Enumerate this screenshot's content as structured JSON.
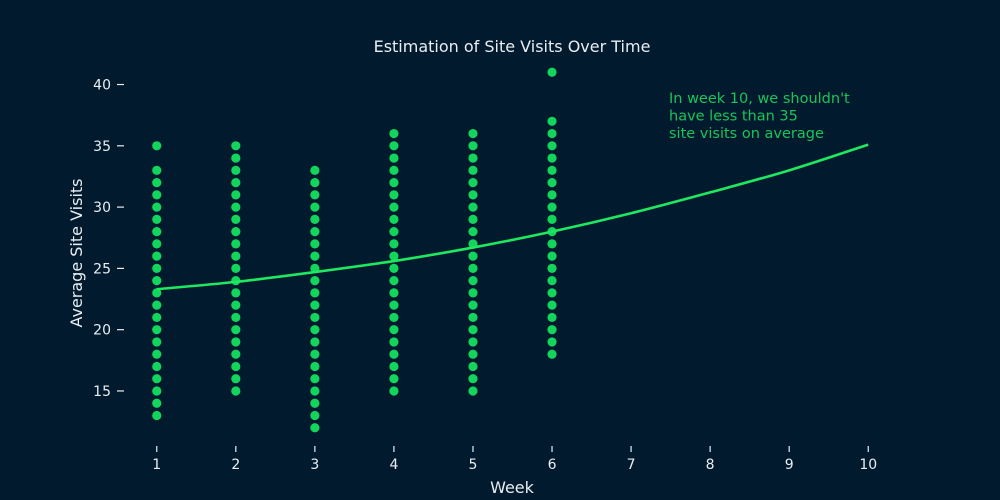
{
  "chart_data": {
    "type": "scatter",
    "title": "Estimation of Site Visits Over Time",
    "xlabel": "Week",
    "ylabel": "Average Site Visits",
    "xlim": [
      0.75,
      10.25
    ],
    "ylim": [
      11,
      42
    ],
    "x_ticks": [
      1,
      2,
      3,
      4,
      5,
      6,
      7,
      8,
      9,
      10
    ],
    "y_ticks": [
      15,
      20,
      25,
      30,
      35,
      40
    ],
    "grid": false,
    "colors": {
      "background": "#021a2e",
      "points": "#12d65c",
      "trend": "#1ee860",
      "annotation": "#19c45a",
      "text": "#e8eef3"
    },
    "series": [
      {
        "type": "scatter",
        "points": [
          [
            1,
            13
          ],
          [
            1,
            14
          ],
          [
            1,
            15
          ],
          [
            1,
            16
          ],
          [
            1,
            17
          ],
          [
            1,
            18
          ],
          [
            1,
            19
          ],
          [
            1,
            20
          ],
          [
            1,
            21
          ],
          [
            1,
            22
          ],
          [
            1,
            23
          ],
          [
            1,
            24
          ],
          [
            1,
            25
          ],
          [
            1,
            26
          ],
          [
            1,
            27
          ],
          [
            1,
            28
          ],
          [
            1,
            29
          ],
          [
            1,
            30
          ],
          [
            1,
            31
          ],
          [
            1,
            32
          ],
          [
            1,
            33
          ],
          [
            1,
            35
          ],
          [
            2,
            15
          ],
          [
            2,
            16
          ],
          [
            2,
            17
          ],
          [
            2,
            18
          ],
          [
            2,
            19
          ],
          [
            2,
            20
          ],
          [
            2,
            21
          ],
          [
            2,
            22
          ],
          [
            2,
            23
          ],
          [
            2,
            24
          ],
          [
            2,
            25
          ],
          [
            2,
            26
          ],
          [
            2,
            27
          ],
          [
            2,
            28
          ],
          [
            2,
            29
          ],
          [
            2,
            30
          ],
          [
            2,
            31
          ],
          [
            2,
            32
          ],
          [
            2,
            33
          ],
          [
            2,
            34
          ],
          [
            2,
            35
          ],
          [
            3,
            12
          ],
          [
            3,
            13
          ],
          [
            3,
            14
          ],
          [
            3,
            15
          ],
          [
            3,
            16
          ],
          [
            3,
            17
          ],
          [
            3,
            18
          ],
          [
            3,
            19
          ],
          [
            3,
            20
          ],
          [
            3,
            21
          ],
          [
            3,
            22
          ],
          [
            3,
            23
          ],
          [
            3,
            24
          ],
          [
            3,
            25
          ],
          [
            3,
            26
          ],
          [
            3,
            27
          ],
          [
            3,
            28
          ],
          [
            3,
            29
          ],
          [
            3,
            30
          ],
          [
            3,
            31
          ],
          [
            3,
            32
          ],
          [
            3,
            33
          ],
          [
            4,
            15
          ],
          [
            4,
            16
          ],
          [
            4,
            17
          ],
          [
            4,
            18
          ],
          [
            4,
            19
          ],
          [
            4,
            20
          ],
          [
            4,
            21
          ],
          [
            4,
            22
          ],
          [
            4,
            23
          ],
          [
            4,
            24
          ],
          [
            4,
            25
          ],
          [
            4,
            26
          ],
          [
            4,
            27
          ],
          [
            4,
            28
          ],
          [
            4,
            29
          ],
          [
            4,
            30
          ],
          [
            4,
            31
          ],
          [
            4,
            32
          ],
          [
            4,
            33
          ],
          [
            4,
            34
          ],
          [
            4,
            35
          ],
          [
            4,
            36
          ],
          [
            5,
            15
          ],
          [
            5,
            16
          ],
          [
            5,
            17
          ],
          [
            5,
            18
          ],
          [
            5,
            19
          ],
          [
            5,
            20
          ],
          [
            5,
            21
          ],
          [
            5,
            22
          ],
          [
            5,
            23
          ],
          [
            5,
            24
          ],
          [
            5,
            25
          ],
          [
            5,
            26
          ],
          [
            5,
            27
          ],
          [
            5,
            28
          ],
          [
            5,
            29
          ],
          [
            5,
            30
          ],
          [
            5,
            31
          ],
          [
            5,
            32
          ],
          [
            5,
            33
          ],
          [
            5,
            34
          ],
          [
            5,
            35
          ],
          [
            5,
            36
          ],
          [
            6,
            18
          ],
          [
            6,
            19
          ],
          [
            6,
            20
          ],
          [
            6,
            21
          ],
          [
            6,
            22
          ],
          [
            6,
            23
          ],
          [
            6,
            24
          ],
          [
            6,
            25
          ],
          [
            6,
            26
          ],
          [
            6,
            27
          ],
          [
            6,
            28
          ],
          [
            6,
            29
          ],
          [
            6,
            30
          ],
          [
            6,
            31
          ],
          [
            6,
            32
          ],
          [
            6,
            33
          ],
          [
            6,
            34
          ],
          [
            6,
            35
          ],
          [
            6,
            36
          ],
          [
            6,
            37
          ],
          [
            6,
            41
          ]
        ]
      },
      {
        "type": "line",
        "x": [
          1,
          2,
          3,
          4,
          5,
          6,
          7,
          8,
          9,
          10
        ],
        "y": [
          23.3,
          23.9,
          24.7,
          25.6,
          26.7,
          28.0,
          29.5,
          31.2,
          33.0,
          35.1
        ]
      }
    ],
    "annotations": [
      {
        "text_lines": [
          "In week 10, we shouldn't",
          "have less than 35",
          "site visits on average"
        ],
        "anchor": "top-right"
      }
    ]
  }
}
